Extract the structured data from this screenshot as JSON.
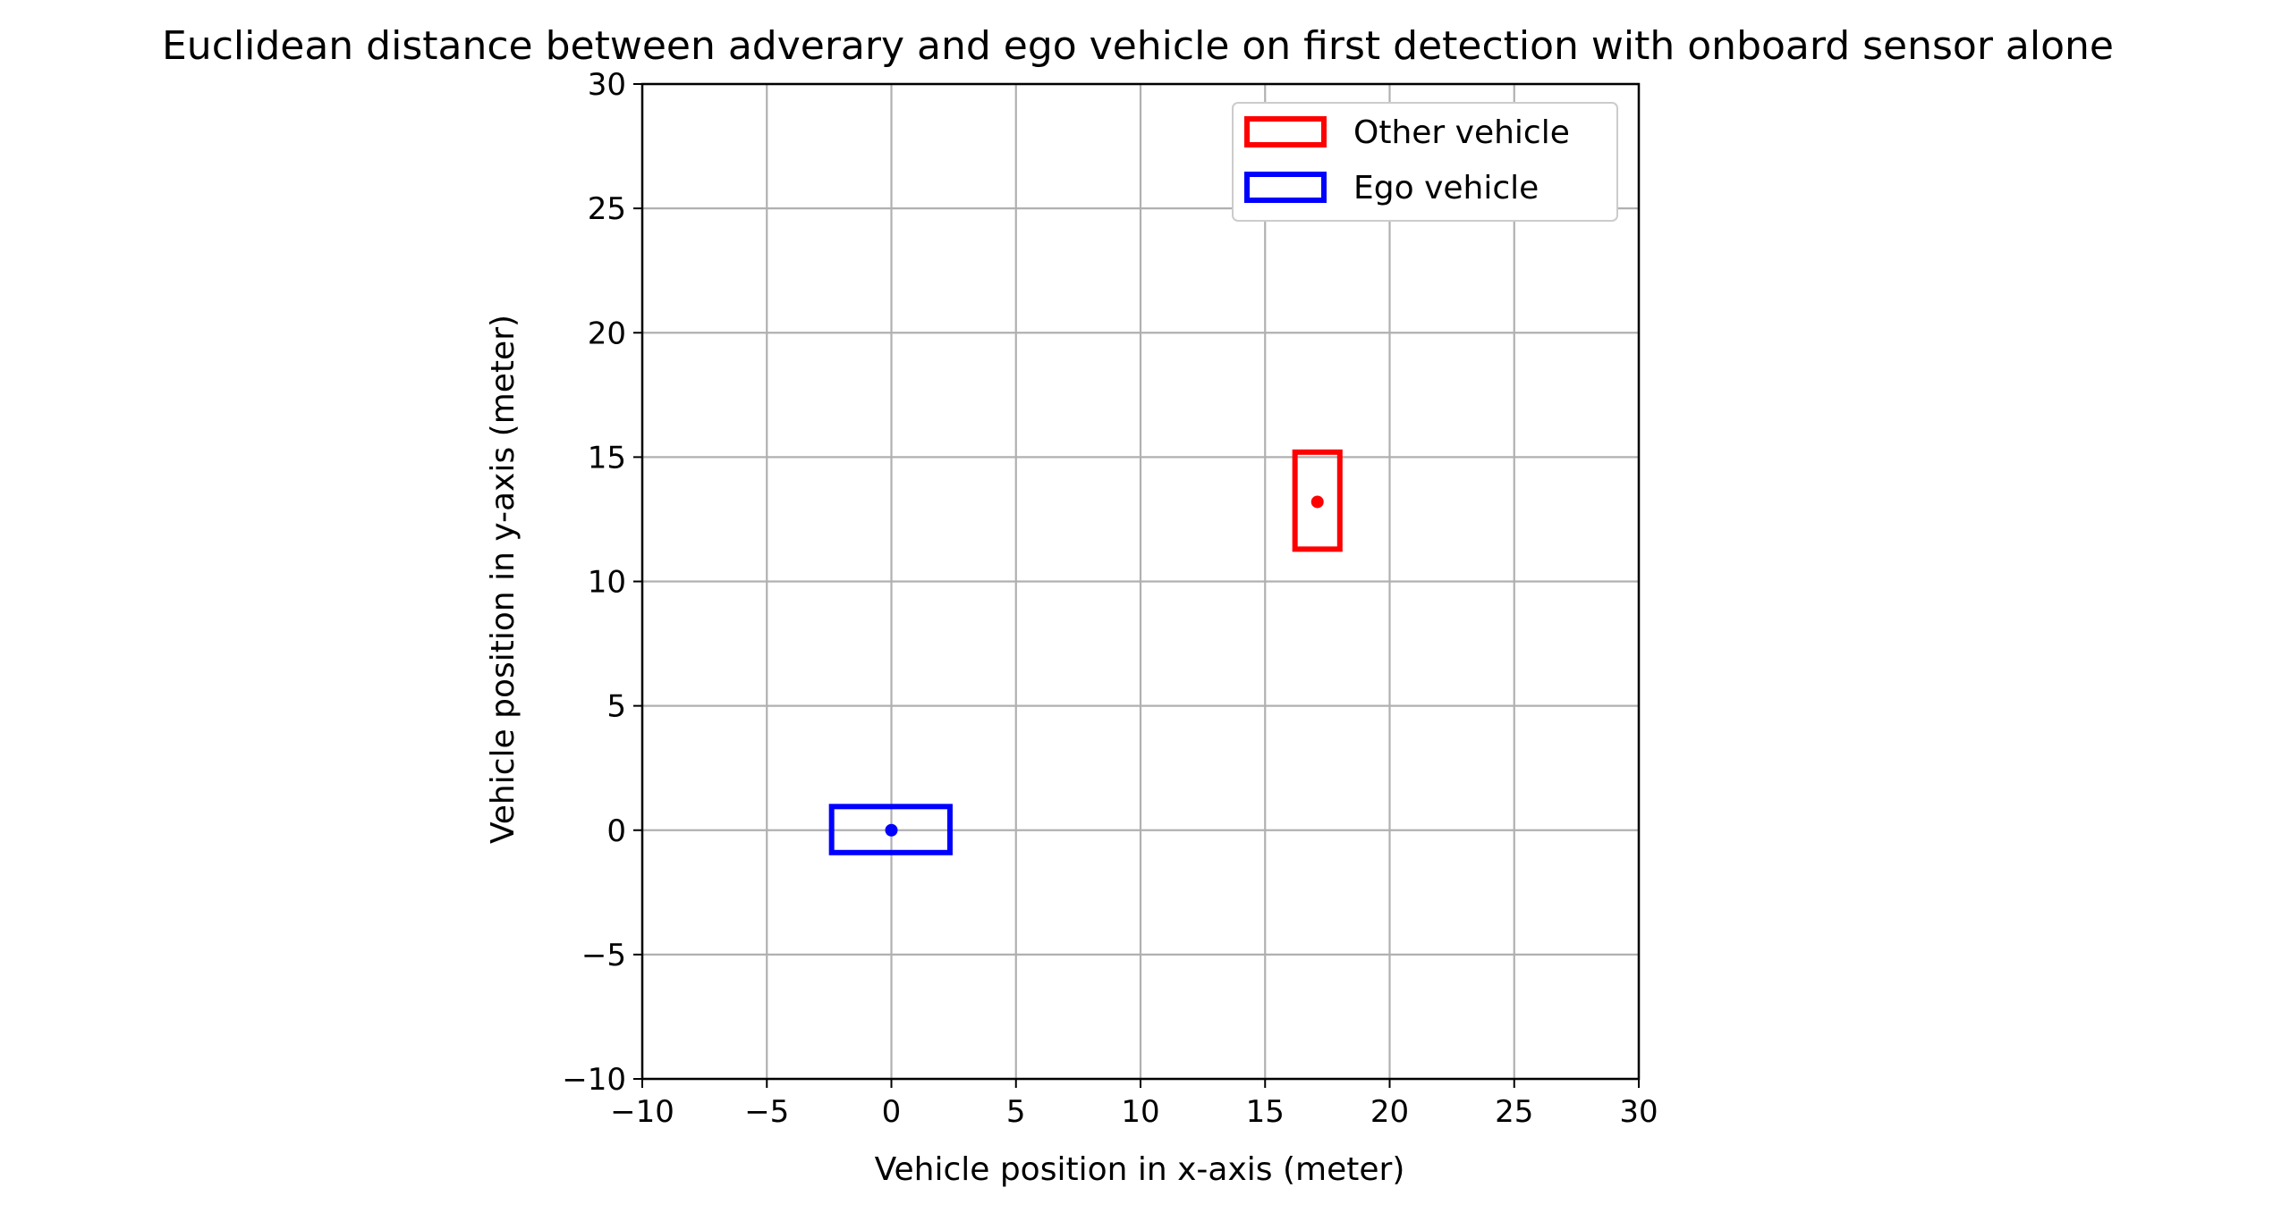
{
  "chart_data": {
    "type": "scatter",
    "title": "Euclidean distance between adverary and ego vehicle on first detection with onboard sensor alone",
    "xlabel": "Vehicle position in x-axis (meter)",
    "ylabel": "Vehicle position in y-axis (meter)",
    "xlim": [
      -10,
      30
    ],
    "ylim": [
      -10,
      30
    ],
    "xticks": [
      -10,
      -5,
      0,
      5,
      10,
      15,
      20,
      25,
      30
    ],
    "yticks": [
      -10,
      -5,
      0,
      5,
      10,
      15,
      20,
      25,
      30
    ],
    "xtick_labels": [
      "−10",
      "−5",
      "0",
      "5",
      "10",
      "15",
      "20",
      "25",
      "30"
    ],
    "ytick_labels": [
      "−10",
      "−5",
      "0",
      "5",
      "10",
      "15",
      "20",
      "25",
      "30"
    ],
    "grid": true,
    "legend_position": "top-right",
    "series": [
      {
        "name": "Other vehicle",
        "color": "#ff0000",
        "center": [
          17.1,
          13.2
        ],
        "box": {
          "x0": 16.2,
          "y0": 11.3,
          "x1": 18.0,
          "y1": 15.2
        }
      },
      {
        "name": "Ego vehicle",
        "color": "#0000ff",
        "center": [
          0,
          0
        ],
        "box": {
          "x0": -2.4,
          "y0": -0.9,
          "x1": 2.35,
          "y1": 0.95
        }
      }
    ]
  }
}
